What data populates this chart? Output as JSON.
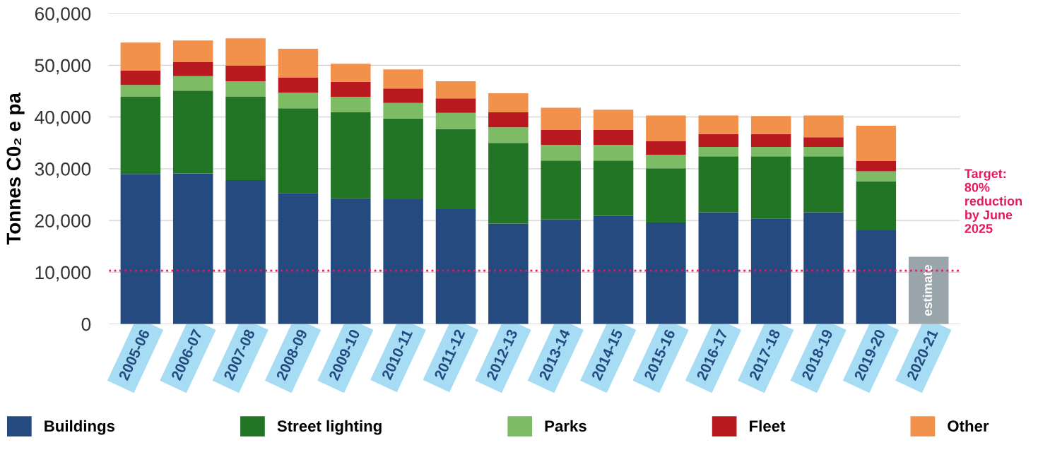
{
  "chart_data": {
    "type": "bar",
    "stacked": true,
    "ylabel": "Tonnes C0₂ e pa",
    "categories": [
      "2005-06",
      "2006-07",
      "2007-08",
      "2008-09",
      "2009-10",
      "2010-11",
      "2011-12",
      "2012-13",
      "2013-14",
      "2014-15",
      "2015-16",
      "2016-17",
      "2017-18",
      "2018-19",
      "2019-20",
      "2020-21"
    ],
    "series": [
      {
        "name": "Buildings",
        "color": "#244a80",
        "values": [
          29000,
          29100,
          27800,
          25300,
          24300,
          24100,
          22200,
          19400,
          20200,
          20900,
          19600,
          21600,
          20400,
          21600,
          18100,
          null
        ]
      },
      {
        "name": "Street lighting",
        "color": "#237526",
        "values": [
          14900,
          16000,
          16100,
          16400,
          16600,
          15600,
          15500,
          15600,
          11400,
          10700,
          10500,
          10800,
          12000,
          10800,
          9500,
          null
        ]
      },
      {
        "name": "Parks",
        "color": "#7dbb64",
        "values": [
          2300,
          2800,
          3000,
          3000,
          3000,
          3000,
          3100,
          3000,
          3000,
          3000,
          2600,
          1800,
          1800,
          1800,
          1900,
          null
        ]
      },
      {
        "name": "Fleet",
        "color": "#b8191e",
        "values": [
          2800,
          2700,
          3000,
          2900,
          2900,
          2800,
          2800,
          2900,
          2900,
          2900,
          2600,
          2500,
          2500,
          1900,
          2000,
          null
        ]
      },
      {
        "name": "Other",
        "color": "#f2914b",
        "values": [
          5400,
          4200,
          5300,
          5600,
          3500,
          3700,
          3300,
          3700,
          4300,
          3900,
          5000,
          3600,
          3500,
          4200,
          6800,
          null
        ]
      },
      {
        "color": "#9aa4ab",
        "values": [
          null,
          null,
          null,
          null,
          null,
          null,
          null,
          null,
          null,
          null,
          null,
          null,
          null,
          null,
          null,
          13000
        ],
        "value_labels": [
          null,
          null,
          null,
          null,
          null,
          null,
          null,
          null,
          null,
          null,
          null,
          null,
          null,
          null,
          null,
          "estimate"
        ]
      }
    ],
    "ylim": [
      0,
      60000
    ],
    "yticks": [
      0,
      {
        "value": 10000,
        "label": "10,000"
      },
      {
        "value": 20000,
        "label": "20,000"
      },
      {
        "value": 30000,
        "label": "30,000"
      },
      {
        "value": 40000,
        "label": "40,000"
      },
      {
        "value": 50000,
        "label": "50,000"
      },
      {
        "value": 60000,
        "label": "60,000"
      }
    ],
    "grid": "y",
    "legend": "bottom",
    "annotations": [
      "Target:\n80%\nreduction\nby June\n2025"
    ],
    "ref_lines": [
      {
        "axis": "y",
        "value": 10300,
        "color": "#e5195e",
        "line_style": "dotted"
      }
    ]
  }
}
